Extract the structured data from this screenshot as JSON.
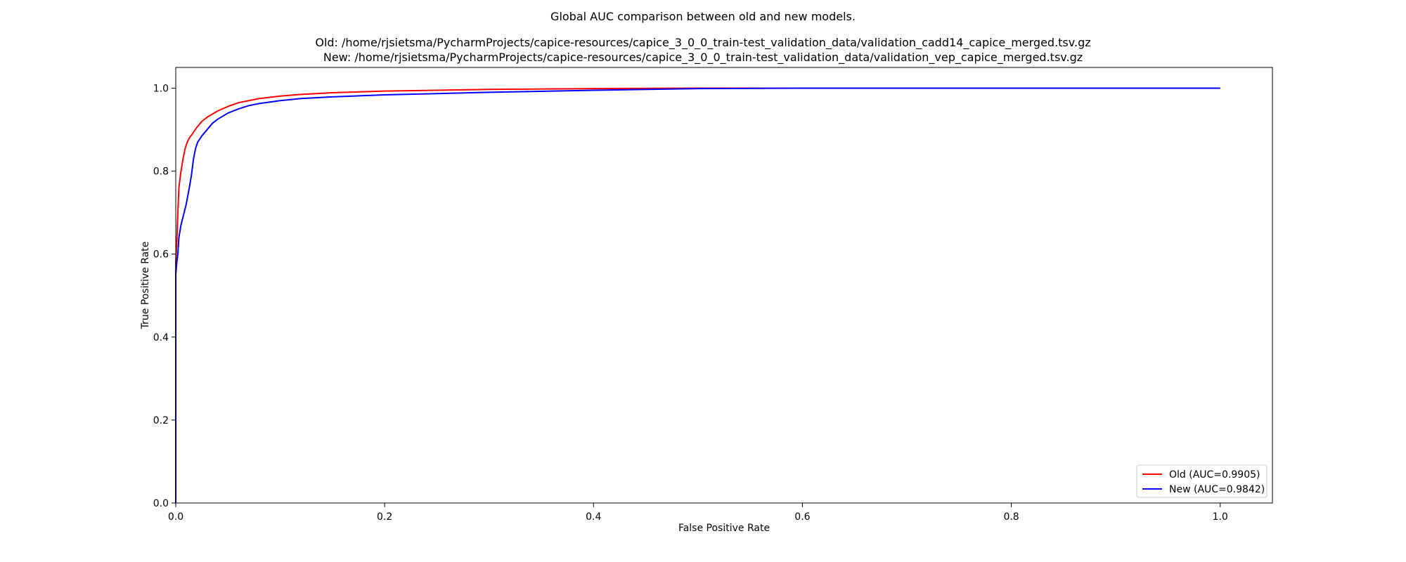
{
  "chart_data": {
    "type": "line",
    "title": "Global AUC comparison between old and new models.",
    "subtitle_lines": [
      "Old: /home/rjsietsma/PycharmProjects/capice-resources/capice_3_0_0_train-test_validation_data/validation_cadd14_capice_merged.tsv.gz",
      "New: /home/rjsietsma/PycharmProjects/capice-resources/capice_3_0_0_train-test_validation_data/validation_vep_capice_merged.tsv.gz"
    ],
    "xlabel": "False Positive Rate",
    "ylabel": "True Positive Rate",
    "xlim": [
      0.0,
      1.05
    ],
    "ylim": [
      0.0,
      1.05
    ],
    "xticks": [
      0.0,
      0.2,
      0.4,
      0.6,
      0.8,
      1.0
    ],
    "yticks": [
      0.0,
      0.2,
      0.4,
      0.6,
      0.8,
      1.0
    ],
    "xtick_labels": [
      "0.0",
      "0.2",
      "0.4",
      "0.6",
      "0.8",
      "1.0"
    ],
    "ytick_labels": [
      "0.0",
      "0.2",
      "0.4",
      "0.6",
      "0.8",
      "1.0"
    ],
    "grid": false,
    "legend_position": "lower-right",
    "series": [
      {
        "name": "Old (AUC=0.9905)",
        "color": "#ff0000",
        "x": [
          0.0,
          0.0,
          0.001,
          0.002,
          0.003,
          0.005,
          0.007,
          0.009,
          0.011,
          0.013,
          0.016,
          0.02,
          0.025,
          0.03,
          0.04,
          0.05,
          0.06,
          0.07,
          0.08,
          0.1,
          0.12,
          0.15,
          0.2,
          0.25,
          0.3,
          0.4,
          0.5,
          0.6,
          0.8,
          1.0
        ],
        "y": [
          0.0,
          0.58,
          0.63,
          0.7,
          0.76,
          0.8,
          0.83,
          0.855,
          0.87,
          0.88,
          0.89,
          0.905,
          0.92,
          0.93,
          0.945,
          0.956,
          0.965,
          0.97,
          0.975,
          0.981,
          0.985,
          0.989,
          0.993,
          0.995,
          0.997,
          0.999,
          1.0,
          1.0,
          1.0,
          1.0
        ]
      },
      {
        "name": "New (AUC=0.9842)",
        "color": "#0000ff",
        "x": [
          0.0,
          0.0,
          0.001,
          0.002,
          0.003,
          0.005,
          0.007,
          0.01,
          0.013,
          0.015,
          0.017,
          0.019,
          0.021,
          0.025,
          0.03,
          0.035,
          0.04,
          0.05,
          0.06,
          0.07,
          0.08,
          0.1,
          0.12,
          0.15,
          0.2,
          0.25,
          0.3,
          0.4,
          0.5,
          0.6,
          0.8,
          1.0
        ],
        "y": [
          0.0,
          0.55,
          0.58,
          0.6,
          0.64,
          0.67,
          0.69,
          0.72,
          0.76,
          0.79,
          0.83,
          0.855,
          0.87,
          0.885,
          0.9,
          0.915,
          0.925,
          0.94,
          0.95,
          0.958,
          0.963,
          0.97,
          0.975,
          0.979,
          0.984,
          0.987,
          0.99,
          0.995,
          0.999,
          1.0,
          1.0,
          1.0
        ]
      }
    ]
  }
}
